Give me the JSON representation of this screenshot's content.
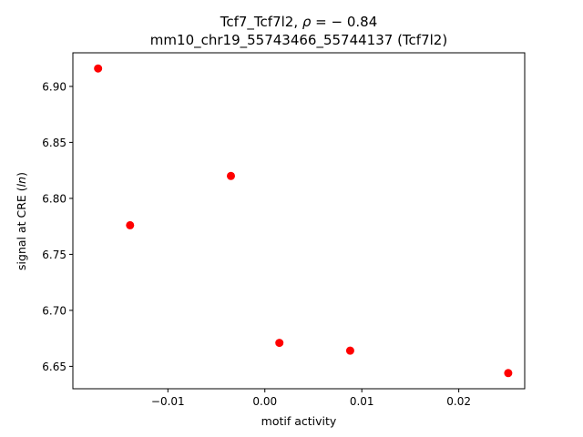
{
  "chart_data": {
    "type": "scatter",
    "title_line1_pre": "Tcf7_Tcf7l2, ",
    "title_line1_rho": "ρ",
    "title_line1_post": " = − 0.84",
    "title_line2": "mm10_chr19_55743466_55744137 (Tcf7l2)",
    "xlabel": "motif activity",
    "ylabel_pre": "signal at CRE (",
    "ylabel_italic": "ln",
    "ylabel_post": ")",
    "xlim": [
      -0.0198,
      0.0268
    ],
    "ylim": [
      6.63,
      6.93
    ],
    "x_ticks": [
      -0.01,
      0.0,
      0.01,
      0.02
    ],
    "x_tick_labels": [
      "−0.01",
      "0.00",
      "0.01",
      "0.02"
    ],
    "y_ticks": [
      6.65,
      6.7,
      6.75,
      6.8,
      6.85,
      6.9
    ],
    "y_tick_labels": [
      "6.65",
      "6.70",
      "6.75",
      "6.80",
      "6.85",
      "6.90"
    ],
    "marker_color": "#ff0000",
    "points": [
      {
        "x": -0.0172,
        "y": 6.916
      },
      {
        "x": -0.0139,
        "y": 6.776
      },
      {
        "x": -0.0035,
        "y": 6.82
      },
      {
        "x": 0.0015,
        "y": 6.671
      },
      {
        "x": 0.0088,
        "y": 6.664
      },
      {
        "x": 0.0251,
        "y": 6.644
      }
    ]
  }
}
